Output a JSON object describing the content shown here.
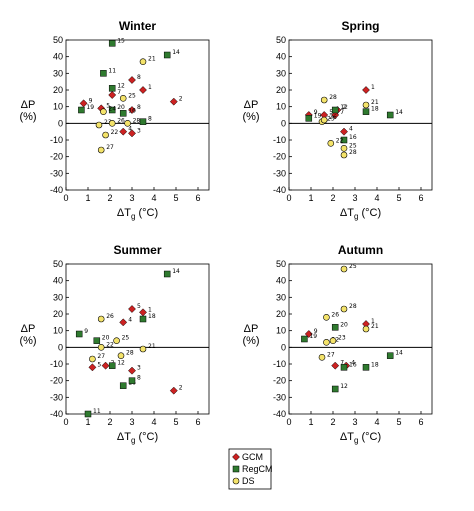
{
  "figure": {
    "legend": {
      "placement": "bottom-center",
      "entries": [
        {
          "name": "GCM",
          "marker": "diamond",
          "color": "#cc2222"
        },
        {
          "name": "RegCM",
          "marker": "square",
          "color": "#2f7a2f"
        },
        {
          "name": "DS",
          "marker": "circle",
          "color": "#f4e36a"
        }
      ]
    }
  },
  "chart_data": [
    {
      "type": "scatter",
      "title": "Winter",
      "xlabel": "ΔT",
      "xlabel_sub": "g",
      "xlabel_unit": "(°C)",
      "ylabel": "ΔP",
      "ylabel_unit": "(%)",
      "xlim": [
        0,
        6.5
      ],
      "ylim": [
        -40,
        50
      ],
      "xticks": [
        0,
        1,
        2,
        3,
        4,
        5,
        6
      ],
      "yticks": [
        -40,
        -30,
        -20,
        -10,
        0,
        10,
        20,
        30,
        40,
        50
      ],
      "series": [
        {
          "name": "GCM",
          "points": [
            {
              "x": 0.8,
              "y": 12,
              "label": "9"
            },
            {
              "x": 1.6,
              "y": 9,
              "label": "5"
            },
            {
              "x": 2.1,
              "y": 17,
              "label": "7"
            },
            {
              "x": 2.6,
              "y": -5,
              "label": "4"
            },
            {
              "x": 3.0,
              "y": 26,
              "label": "8"
            },
            {
              "x": 3.0,
              "y": 8,
              "label": "8"
            },
            {
              "x": 3.0,
              "y": -6,
              "label": "3"
            },
            {
              "x": 3.5,
              "y": 20,
              "label": "1"
            },
            {
              "x": 4.9,
              "y": 13,
              "label": "2"
            }
          ]
        },
        {
          "name": "RegCM",
          "points": [
            {
              "x": 0.7,
              "y": 8,
              "label": "19"
            },
            {
              "x": 1.7,
              "y": 30,
              "label": "11"
            },
            {
              "x": 2.1,
              "y": 48,
              "label": "15"
            },
            {
              "x": 2.1,
              "y": 21,
              "label": "12"
            },
            {
              "x": 2.1,
              "y": 8,
              "label": "20"
            },
            {
              "x": 2.6,
              "y": 6,
              "label": "16"
            },
            {
              "x": 3.5,
              "y": 1,
              "label": "8"
            },
            {
              "x": 4.6,
              "y": 41,
              "label": "14"
            }
          ]
        },
        {
          "name": "DS",
          "points": [
            {
              "x": 1.5,
              "y": -1,
              "label": "23"
            },
            {
              "x": 1.6,
              "y": -16,
              "label": "27"
            },
            {
              "x": 1.7,
              "y": 7,
              "label": "24"
            },
            {
              "x": 1.8,
              "y": -7,
              "label": "22"
            },
            {
              "x": 2.1,
              "y": 0,
              "label": "26"
            },
            {
              "x": 2.6,
              "y": 15,
              "label": "25"
            },
            {
              "x": 2.8,
              "y": 0,
              "label": "28"
            },
            {
              "x": 3.5,
              "y": 37,
              "label": "21"
            }
          ]
        }
      ]
    },
    {
      "type": "scatter",
      "title": "Spring",
      "xlabel": "ΔT",
      "xlabel_sub": "g",
      "xlabel_unit": "(°C)",
      "ylabel": "ΔP",
      "ylabel_unit": "(%)",
      "xlim": [
        0,
        6.5
      ],
      "ylim": [
        -40,
        50
      ],
      "xticks": [
        0,
        1,
        2,
        3,
        4,
        5,
        6
      ],
      "yticks": [
        -40,
        -30,
        -20,
        -10,
        0,
        10,
        20,
        30,
        40,
        50
      ],
      "series": [
        {
          "name": "GCM",
          "points": [
            {
              "x": 0.9,
              "y": 5,
              "label": "9"
            },
            {
              "x": 1.6,
              "y": 5,
              "label": "5"
            },
            {
              "x": 2.1,
              "y": 5,
              "label": "7"
            },
            {
              "x": 2.2,
              "y": 8,
              "label": "2"
            },
            {
              "x": 2.5,
              "y": -5,
              "label": "4"
            },
            {
              "x": 3.5,
              "y": 20,
              "label": "1"
            }
          ]
        },
        {
          "name": "RegCM",
          "points": [
            {
              "x": 0.9,
              "y": 3,
              "label": "19"
            },
            {
              "x": 2.1,
              "y": 8,
              "label": "12"
            },
            {
              "x": 2.5,
              "y": -10,
              "label": "16"
            },
            {
              "x": 3.5,
              "y": 7,
              "label": "18"
            },
            {
              "x": 4.6,
              "y": 5,
              "label": "14"
            }
          ]
        },
        {
          "name": "DS",
          "points": [
            {
              "x": 1.5,
              "y": 1,
              "label": "23"
            },
            {
              "x": 1.6,
              "y": 14,
              "label": "28"
            },
            {
              "x": 1.6,
              "y": 2,
              "label": "26"
            },
            {
              "x": 1.9,
              "y": -12,
              "label": "22"
            },
            {
              "x": 2.5,
              "y": -15,
              "label": "25"
            },
            {
              "x": 2.5,
              "y": -19,
              "label": "28"
            },
            {
              "x": 3.5,
              "y": 11,
              "label": "21"
            }
          ]
        }
      ]
    },
    {
      "type": "scatter",
      "title": "Summer",
      "xlabel": "ΔT",
      "xlabel_sub": "g",
      "xlabel_unit": "(°C)",
      "ylabel": "ΔP",
      "ylabel_unit": "(%)",
      "xlim": [
        0,
        6.5
      ],
      "ylim": [
        -40,
        50
      ],
      "xticks": [
        0,
        1,
        2,
        3,
        4,
        5,
        6
      ],
      "yticks": [
        -40,
        -30,
        -20,
        -10,
        0,
        10,
        20,
        30,
        40,
        50
      ],
      "series": [
        {
          "name": "GCM",
          "points": [
            {
              "x": 1.2,
              "y": -12,
              "label": "5"
            },
            {
              "x": 1.8,
              "y": -11,
              "label": "2"
            },
            {
              "x": 2.6,
              "y": 15,
              "label": "4"
            },
            {
              "x": 3.0,
              "y": 23,
              "label": "5"
            },
            {
              "x": 3.0,
              "y": -14,
              "label": "3"
            },
            {
              "x": 3.5,
              "y": 21,
              "label": "1"
            },
            {
              "x": 4.9,
              "y": -26,
              "label": "2"
            }
          ]
        },
        {
          "name": "RegCM",
          "points": [
            {
              "x": 0.6,
              "y": 8,
              "label": "9"
            },
            {
              "x": 1.0,
              "y": -40,
              "label": "11"
            },
            {
              "x": 1.4,
              "y": 4,
              "label": "20"
            },
            {
              "x": 2.1,
              "y": -11,
              "label": "12"
            },
            {
              "x": 2.6,
              "y": -23,
              "label": "16"
            },
            {
              "x": 3.0,
              "y": -20,
              "label": "8"
            },
            {
              "x": 3.5,
              "y": 17,
              "label": "18"
            },
            {
              "x": 4.6,
              "y": 44,
              "label": "14"
            }
          ]
        },
        {
          "name": "DS",
          "points": [
            {
              "x": 1.2,
              "y": -7,
              "label": "27"
            },
            {
              "x": 1.6,
              "y": 17,
              "label": "26"
            },
            {
              "x": 1.6,
              "y": 0,
              "label": "22"
            },
            {
              "x": 2.3,
              "y": 4,
              "label": "25"
            },
            {
              "x": 2.5,
              "y": -5,
              "label": "28"
            },
            {
              "x": 3.5,
              "y": -1,
              "label": "21"
            }
          ]
        }
      ]
    },
    {
      "type": "scatter",
      "title": "Autumn",
      "xlabel": "ΔT",
      "xlabel_sub": "g",
      "xlabel_unit": "(°C)",
      "ylabel": "ΔP",
      "ylabel_unit": "(%)",
      "xlim": [
        0,
        6.5
      ],
      "ylim": [
        -40,
        50
      ],
      "xticks": [
        0,
        1,
        2,
        3,
        4,
        5,
        6
      ],
      "yticks": [
        -40,
        -30,
        -20,
        -10,
        0,
        10,
        20,
        30,
        40,
        50
      ],
      "series": [
        {
          "name": "GCM",
          "points": [
            {
              "x": 0.9,
              "y": 8,
              "label": "9"
            },
            {
              "x": 2.1,
              "y": -11,
              "label": "7"
            },
            {
              "x": 2.6,
              "y": -11,
              "label": "4"
            },
            {
              "x": 3.5,
              "y": 14,
              "label": "1"
            }
          ]
        },
        {
          "name": "RegCM",
          "points": [
            {
              "x": 0.7,
              "y": 5,
              "label": "19"
            },
            {
              "x": 2.1,
              "y": 12,
              "label": "20"
            },
            {
              "x": 2.1,
              "y": -25,
              "label": "12"
            },
            {
              "x": 2.5,
              "y": -12,
              "label": "16"
            },
            {
              "x": 3.5,
              "y": -12,
              "label": "18"
            },
            {
              "x": 4.6,
              "y": -5,
              "label": "14"
            }
          ]
        },
        {
          "name": "DS",
          "points": [
            {
              "x": 1.5,
              "y": -6,
              "label": "27"
            },
            {
              "x": 1.7,
              "y": 3,
              "label": "22"
            },
            {
              "x": 1.7,
              "y": 18,
              "label": "26"
            },
            {
              "x": 2.0,
              "y": 4,
              "label": "23"
            },
            {
              "x": 2.5,
              "y": 47,
              "label": "25"
            },
            {
              "x": 2.5,
              "y": 23,
              "label": "28"
            },
            {
              "x": 3.5,
              "y": 11,
              "label": "21"
            }
          ]
        }
      ]
    }
  ]
}
